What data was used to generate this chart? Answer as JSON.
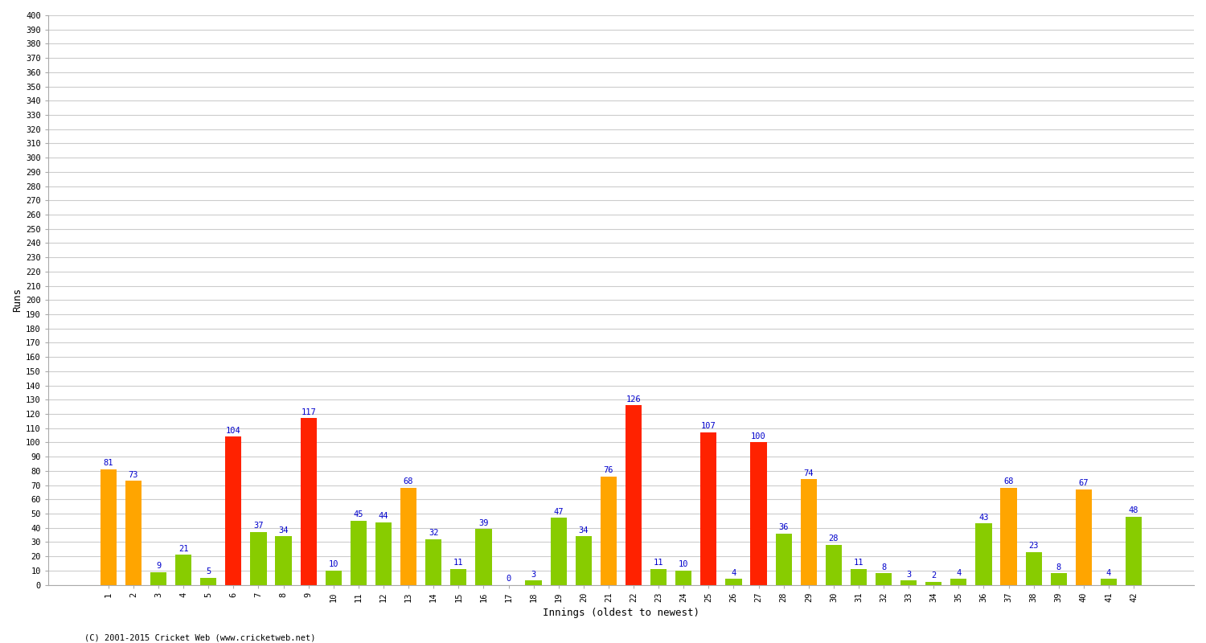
{
  "innings": [
    1,
    2,
    3,
    4,
    5,
    6,
    7,
    8,
    9,
    10,
    11,
    12,
    13,
    14,
    15,
    16,
    17,
    18,
    19,
    20,
    21,
    22,
    23,
    24,
    25,
    26,
    27,
    28,
    29,
    30,
    31,
    32,
    33,
    34,
    35,
    36,
    37,
    38,
    39,
    40,
    41,
    42
  ],
  "values": [
    81,
    73,
    9,
    21,
    5,
    104,
    37,
    34,
    117,
    10,
    45,
    44,
    68,
    32,
    11,
    39,
    0,
    3,
    47,
    34,
    76,
    126,
    11,
    10,
    107,
    4,
    100,
    36,
    74,
    28,
    11,
    8,
    3,
    2,
    4,
    43,
    68,
    23,
    8,
    67,
    4,
    48
  ],
  "colors": [
    "orange",
    "orange",
    "limegreen",
    "limegreen",
    "limegreen",
    "red",
    "limegreen",
    "limegreen",
    "red",
    "limegreen",
    "limegreen",
    "limegreen",
    "orange",
    "limegreen",
    "limegreen",
    "limegreen",
    "limegreen",
    "limegreen",
    "limegreen",
    "limegreen",
    "orange",
    "red",
    "limegreen",
    "limegreen",
    "red",
    "limegreen",
    "red",
    "limegreen",
    "orange",
    "limegreen",
    "limegreen",
    "limegreen",
    "limegreen",
    "limegreen",
    "limegreen",
    "limegreen",
    "orange",
    "limegreen",
    "limegreen",
    "orange",
    "limegreen",
    "limegreen"
  ],
  "xlabel": "Innings (oldest to newest)",
  "ylabel": "Runs",
  "ylim": [
    0,
    400
  ],
  "yticks": [
    0,
    10,
    20,
    30,
    40,
    50,
    60,
    70,
    80,
    90,
    100,
    110,
    120,
    130,
    140,
    150,
    160,
    170,
    180,
    190,
    200,
    210,
    220,
    230,
    240,
    250,
    260,
    270,
    280,
    290,
    300,
    310,
    320,
    330,
    340,
    350,
    360,
    370,
    380,
    390,
    400
  ],
  "bg_color": "#ffffff",
  "grid_color": "#cccccc",
  "label_color": "#0000cc",
  "label_fontsize": 7.5,
  "bar_width": 0.65,
  "footer": "(C) 2001-2015 Cricket Web (www.cricketweb.net)",
  "orange_hex": "#FFA500",
  "red_hex": "#FF2200",
  "green_hex": "#88CC00"
}
